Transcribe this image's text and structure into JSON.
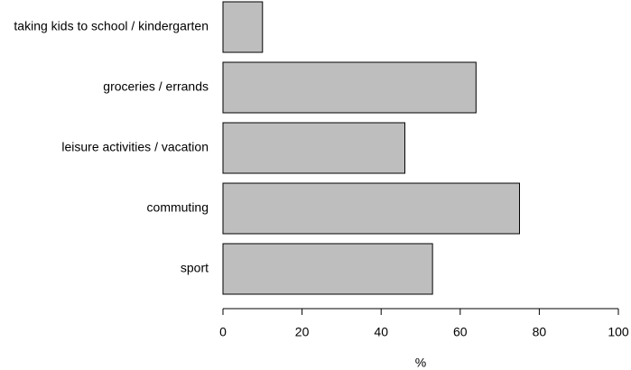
{
  "chart_data": {
    "type": "barh",
    "categories": [
      "taking kids to school / kindergarten",
      "groceries / errands",
      "leisure activities / vacation",
      "commuting",
      "sport"
    ],
    "values": [
      10,
      64,
      46,
      75,
      53
    ],
    "color": "#bebebe",
    "xlabel": "%",
    "xlim": [
      0,
      100
    ],
    "xticks": [
      0,
      20,
      40,
      60,
      80,
      100
    ]
  }
}
